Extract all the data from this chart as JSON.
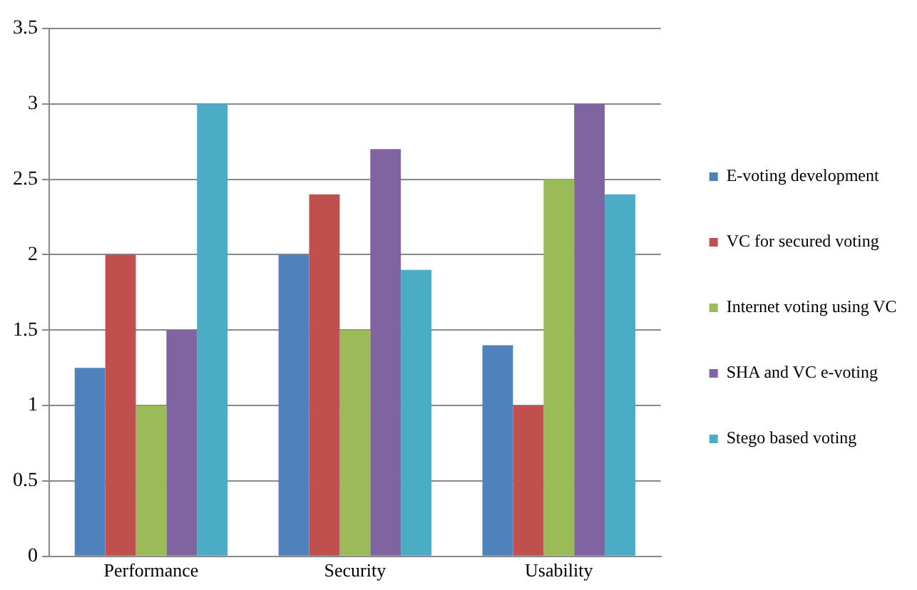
{
  "chart_data": {
    "type": "bar",
    "categories": [
      "Performance",
      "Security",
      "Usability"
    ],
    "series": [
      {
        "name": "E-voting development",
        "color": "#4f81bd",
        "values": [
          1.25,
          2,
          1.4
        ]
      },
      {
        "name": "VC for secured voting",
        "color": "#c0504d",
        "values": [
          2,
          2.4,
          1
        ]
      },
      {
        "name": "Internet voting using VC",
        "color": "#9bbb59",
        "values": [
          1,
          1.5,
          2.5
        ]
      },
      {
        "name": "SHA and VC e-voting",
        "color": "#8064a2",
        "values": [
          1.5,
          2.7,
          3
        ]
      },
      {
        "name": "Stego based voting",
        "color": "#4bacc6",
        "values": [
          3,
          1.9,
          2.4
        ]
      }
    ],
    "ylim": [
      0,
      3.5
    ],
    "yticks": [
      0,
      0.5,
      1,
      1.5,
      2,
      2.5,
      3,
      3.5
    ],
    "grid": "y",
    "legend": "right"
  }
}
